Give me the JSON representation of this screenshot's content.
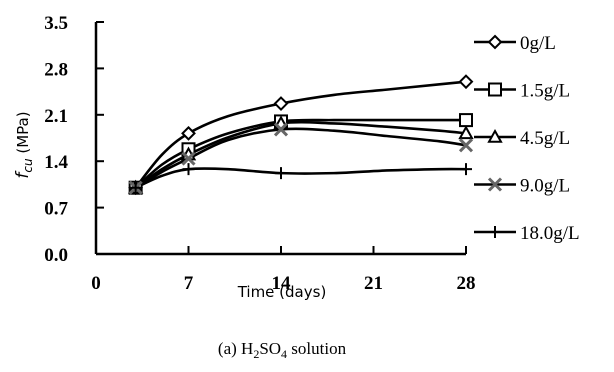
{
  "chart_data": {
    "type": "line",
    "ylabel_symbol": "f",
    "ylabel_subscript": "cu",
    "ylabel_unit": " (MPa)",
    "xlabel": "Time (days)",
    "caption_prefix": "(a) H",
    "caption_sub1": "2",
    "caption_mid": "SO",
    "caption_sub2": "4",
    "caption_suffix": " solution",
    "xlim": [
      0,
      28
    ],
    "ylim": [
      0.0,
      3.5
    ],
    "xticks": [
      0,
      7,
      14,
      21,
      28
    ],
    "yticks": [
      0.0,
      0.7,
      1.4,
      2.1,
      2.8,
      3.5
    ],
    "x_tick_labels": [
      "0",
      "7",
      "14",
      "21",
      "28"
    ],
    "y_tick_labels": [
      "0.0",
      "0.7",
      "1.4",
      "2.1",
      "2.8",
      "3.5"
    ],
    "legend_position": "right",
    "grid": false,
    "series": [
      {
        "name": "0g/L",
        "marker": "diamond",
        "x": [
          3,
          7,
          14,
          28
        ],
        "y": [
          1.0,
          1.82,
          2.27,
          2.6
        ],
        "curve": [
          [
            3,
            1.0
          ],
          [
            5,
            1.5
          ],
          [
            7,
            1.82
          ],
          [
            10,
            2.08
          ],
          [
            14,
            2.27
          ],
          [
            18,
            2.4
          ],
          [
            22,
            2.48
          ],
          [
            26,
            2.56
          ],
          [
            28,
            2.6
          ]
        ]
      },
      {
        "name": "1.5g/L",
        "marker": "square",
        "x": [
          3,
          7,
          14,
          28
        ],
        "y": [
          1.0,
          1.58,
          2.0,
          2.02
        ],
        "curve": [
          [
            3,
            1.0
          ],
          [
            5,
            1.35
          ],
          [
            7,
            1.58
          ],
          [
            10,
            1.82
          ],
          [
            14,
            2.0
          ],
          [
            18,
            2.02
          ],
          [
            22,
            2.02
          ],
          [
            26,
            2.02
          ],
          [
            28,
            2.02
          ]
        ]
      },
      {
        "name": "4.5g/L",
        "marker": "triangle",
        "x": [
          3,
          7,
          14,
          28
        ],
        "y": [
          1.0,
          1.5,
          1.97,
          1.82
        ],
        "curve": [
          [
            3,
            1.0
          ],
          [
            5,
            1.28
          ],
          [
            7,
            1.5
          ],
          [
            10,
            1.76
          ],
          [
            14,
            1.97
          ],
          [
            18,
            1.97
          ],
          [
            22,
            1.92
          ],
          [
            26,
            1.86
          ],
          [
            28,
            1.82
          ]
        ]
      },
      {
        "name": "9.0g/L",
        "marker": "x",
        "x": [
          3,
          7,
          14,
          28
        ],
        "y": [
          1.0,
          1.44,
          1.88,
          1.64
        ],
        "curve": [
          [
            3,
            1.0
          ],
          [
            5,
            1.24
          ],
          [
            7,
            1.44
          ],
          [
            10,
            1.72
          ],
          [
            14,
            1.88
          ],
          [
            18,
            1.86
          ],
          [
            22,
            1.78
          ],
          [
            26,
            1.7
          ],
          [
            28,
            1.64
          ]
        ]
      },
      {
        "name": "18.0g/L",
        "marker": "plus",
        "x": [
          3,
          7,
          14,
          28
        ],
        "y": [
          1.0,
          1.28,
          1.22,
          1.28
        ],
        "curve": [
          [
            3,
            1.0
          ],
          [
            5,
            1.18
          ],
          [
            7,
            1.28
          ],
          [
            10,
            1.28
          ],
          [
            14,
            1.22
          ],
          [
            18,
            1.22
          ],
          [
            22,
            1.26
          ],
          [
            26,
            1.28
          ],
          [
            28,
            1.28
          ]
        ]
      }
    ]
  }
}
